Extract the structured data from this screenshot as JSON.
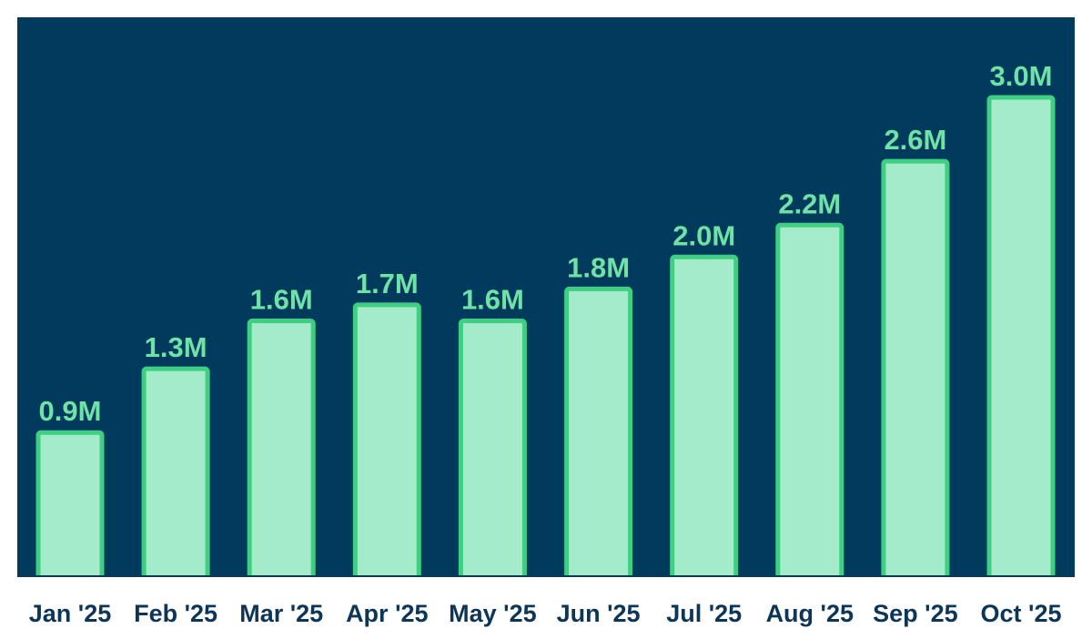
{
  "chart_data": {
    "type": "bar",
    "title": "",
    "xlabel": "",
    "ylabel": "",
    "categories": [
      "Jan '25",
      "Feb '25",
      "Mar '25",
      "Apr '25",
      "May '25",
      "Jun '25",
      "Jul '25",
      "Aug '25",
      "Sep '25",
      "Oct '25"
    ],
    "values": [
      0.9,
      1.3,
      1.6,
      1.7,
      1.6,
      1.8,
      2.0,
      2.2,
      2.6,
      3.0
    ],
    "value_labels": [
      "0.9M",
      "1.3M",
      "1.6M",
      "1.7M",
      "1.6M",
      "1.8M",
      "2.0M",
      "2.2M",
      "2.6M",
      "3.0M"
    ],
    "unit": "M",
    "ylim": [
      0,
      3.0
    ],
    "grid": false,
    "legend": "none"
  },
  "colors": {
    "plot_background": "#003a5c",
    "bar_fill": "#a3ebc9",
    "bar_stroke": "#3ecf82",
    "value_label": "#6fe2a7",
    "tick_label": "#0c3556",
    "baseline": "#0c3556"
  }
}
